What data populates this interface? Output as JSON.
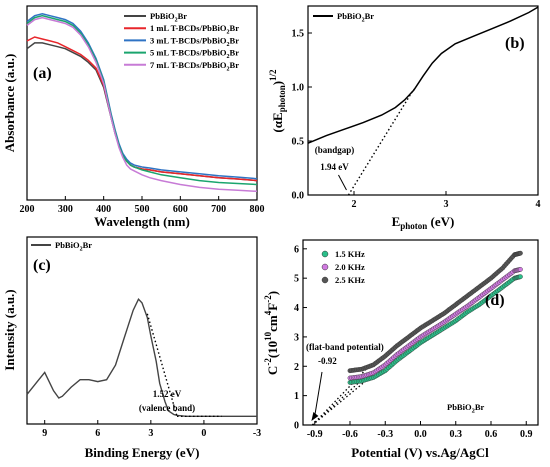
{
  "chart_data": [
    {
      "panel_label": "(a)",
      "type": "line",
      "xlabel": "Wavelength (nm)",
      "ylabel": "Absorbance (a.u.)",
      "xlim": [
        200,
        800
      ],
      "xticks": [
        200,
        300,
        400,
        500,
        600,
        700,
        800
      ],
      "legend_position": "top-right",
      "series": [
        {
          "name_parts": [
            "PbBiO",
            "2",
            "Br"
          ],
          "color": "#444444",
          "x": [
            200,
            220,
            240,
            260,
            280,
            300,
            320,
            340,
            360,
            380,
            400,
            410,
            420,
            430,
            440,
            450,
            460,
            470,
            480,
            500,
            520,
            550,
            600,
            650,
            700,
            750,
            800
          ],
          "y": [
            0.78,
            0.81,
            0.81,
            0.8,
            0.79,
            0.78,
            0.76,
            0.74,
            0.71,
            0.67,
            0.58,
            0.5,
            0.42,
            0.34,
            0.28,
            0.23,
            0.2,
            0.18,
            0.17,
            0.16,
            0.155,
            0.145,
            0.135,
            0.125,
            0.115,
            0.108,
            0.1
          ]
        },
        {
          "name_parts": [
            "1 mL T-BCDs/PbBiO",
            "2",
            "Br"
          ],
          "color": "#e8262b",
          "x": [
            200,
            220,
            240,
            260,
            280,
            300,
            320,
            340,
            360,
            380,
            400,
            410,
            420,
            430,
            440,
            450,
            460,
            470,
            480,
            500,
            520,
            550,
            600,
            650,
            700,
            750,
            800
          ],
          "y": [
            0.82,
            0.84,
            0.83,
            0.82,
            0.81,
            0.79,
            0.77,
            0.75,
            0.72,
            0.68,
            0.59,
            0.51,
            0.43,
            0.35,
            0.28,
            0.23,
            0.2,
            0.18,
            0.17,
            0.16,
            0.155,
            0.145,
            0.135,
            0.125,
            0.115,
            0.108,
            0.1
          ]
        },
        {
          "name_parts": [
            "3 mL T-BCDs/PbBiO",
            "2",
            "Br"
          ],
          "color": "#2f73c4",
          "x": [
            200,
            220,
            240,
            260,
            280,
            300,
            320,
            340,
            360,
            380,
            400,
            410,
            420,
            430,
            440,
            450,
            460,
            470,
            480,
            500,
            520,
            550,
            600,
            650,
            700,
            750,
            800
          ],
          "y": [
            0.92,
            0.95,
            0.96,
            0.95,
            0.94,
            0.93,
            0.91,
            0.87,
            0.81,
            0.73,
            0.62,
            0.53,
            0.44,
            0.36,
            0.29,
            0.24,
            0.21,
            0.19,
            0.18,
            0.17,
            0.165,
            0.155,
            0.145,
            0.135,
            0.125,
            0.118,
            0.11
          ]
        },
        {
          "name_parts": [
            "5 mL T-BCDs/PbBiO",
            "2",
            "Br"
          ],
          "color": "#1aa56e",
          "x": [
            200,
            220,
            240,
            260,
            280,
            300,
            320,
            340,
            360,
            380,
            400,
            410,
            420,
            430,
            440,
            450,
            460,
            470,
            480,
            500,
            520,
            550,
            600,
            650,
            700,
            750,
            800
          ],
          "y": [
            0.91,
            0.94,
            0.95,
            0.94,
            0.93,
            0.92,
            0.9,
            0.86,
            0.8,
            0.72,
            0.61,
            0.52,
            0.43,
            0.35,
            0.28,
            0.23,
            0.2,
            0.18,
            0.17,
            0.155,
            0.145,
            0.13,
            0.115,
            0.1,
            0.09,
            0.085,
            0.08
          ]
        },
        {
          "name_parts": [
            "7 mL T-BCDs/PbBiO",
            "2",
            "Br"
          ],
          "color": "#c77bd6",
          "x": [
            200,
            220,
            240,
            260,
            280,
            300,
            320,
            340,
            360,
            380,
            400,
            410,
            420,
            430,
            440,
            450,
            460,
            470,
            480,
            500,
            520,
            550,
            600,
            650,
            700,
            750,
            800
          ],
          "y": [
            0.9,
            0.93,
            0.94,
            0.93,
            0.92,
            0.91,
            0.89,
            0.85,
            0.79,
            0.71,
            0.6,
            0.51,
            0.42,
            0.34,
            0.27,
            0.22,
            0.18,
            0.16,
            0.15,
            0.13,
            0.115,
            0.1,
            0.08,
            0.065,
            0.055,
            0.05,
            0.045
          ]
        }
      ]
    },
    {
      "panel_label": "(b)",
      "type": "line",
      "xlabel_parts": [
        "E",
        "photon",
        " (eV)"
      ],
      "ylabel_parts": [
        "(αE",
        "photon",
        ")",
        "1/2"
      ],
      "xlim": [
        1.5,
        4
      ],
      "ylim": [
        0,
        1.75
      ],
      "xticks": [
        2,
        3,
        4
      ],
      "yticks": [
        0.0,
        0.5,
        1.0,
        1.5
      ],
      "ytick_labels": [
        "0.0",
        "0.5",
        "1.0",
        "1.5"
      ],
      "legend_position": "top-left",
      "series": [
        {
          "name_parts": [
            "PbBiO",
            "2",
            "Br"
          ],
          "color": "#000000",
          "x": [
            1.5,
            1.7,
            1.9,
            2.1,
            2.3,
            2.45,
            2.55,
            2.65,
            2.75,
            2.85,
            2.95,
            3.1,
            3.3,
            3.5,
            3.7,
            3.9,
            4.0
          ],
          "y": [
            0.48,
            0.55,
            0.61,
            0.67,
            0.74,
            0.81,
            0.88,
            0.97,
            1.1,
            1.22,
            1.31,
            1.4,
            1.47,
            1.54,
            1.61,
            1.69,
            1.74
          ]
        }
      ],
      "tangent": {
        "x": [
          1.94,
          2.65
        ],
        "y": [
          0.0,
          0.98
        ]
      },
      "annotation": {
        "lines": [
          "(bandgap)",
          "1.94 eV"
        ],
        "at_x": 1.94
      }
    },
    {
      "panel_label": "(c)",
      "type": "line",
      "xlabel": "Binding Energy (eV)",
      "ylabel": "Intensity (a.u.)",
      "xlim": [
        10,
        -3
      ],
      "xticks": [
        9,
        6,
        3,
        0,
        -3
      ],
      "legend_position": "top-left",
      "series": [
        {
          "name_parts": [
            "PbBiO",
            "2",
            "Br"
          ],
          "color": "#444444",
          "x": [
            10,
            9.5,
            9,
            8.5,
            8.2,
            8,
            7.5,
            7,
            6.5,
            6,
            5.5,
            5,
            4.5,
            4,
            3.7,
            3.5,
            3.2,
            3,
            2.7,
            2.5,
            2.2,
            2,
            1.7,
            1.5,
            1,
            0,
            -1,
            -2,
            -3
          ],
          "y": [
            0.14,
            0.2,
            0.26,
            0.16,
            0.12,
            0.13,
            0.18,
            0.22,
            0.22,
            0.21,
            0.22,
            0.3,
            0.45,
            0.6,
            0.66,
            0.64,
            0.56,
            0.46,
            0.32,
            0.2,
            0.1,
            0.05,
            0.03,
            0.025,
            0.02,
            0.02,
            0.02,
            0.02,
            0.02
          ]
        }
      ],
      "tangent": {
        "x": [
          3.2,
          1.52
        ],
        "y": [
          0.58,
          0.02
        ]
      },
      "baseline": {
        "x": [
          1.52,
          -1.0
        ],
        "y": [
          0.02,
          0.02
        ]
      },
      "annotation": {
        "lines": [
          "1.52 eV",
          "(valence band)"
        ],
        "at_x": 1.52
      }
    },
    {
      "panel_label": "(d)",
      "type": "scatter",
      "xlabel": "Potential (V) vs.Ag/AgCl",
      "ylabel_parts": [
        "C",
        "-2",
        "(10",
        "10",
        "cm",
        "4",
        "F",
        "-2",
        ")"
      ],
      "xlim": [
        -1.0,
        1.0
      ],
      "ylim": [
        0,
        6.3
      ],
      "xticks": [
        -0.9,
        -0.6,
        -0.3,
        0.0,
        0.3,
        0.6,
        0.9
      ],
      "xtick_labels": [
        "-0.9",
        "-0.6",
        "-0.3",
        "0.0",
        "0.3",
        "0.6",
        "0.9"
      ],
      "yticks": [
        0,
        1,
        2,
        3,
        4,
        5,
        6
      ],
      "legend_position": "top-left",
      "series_label_parts": [
        "PbBiO",
        "2",
        "Br"
      ],
      "series": [
        {
          "name": "1.5 KHz",
          "color": "#2bbf8a",
          "x": [
            -0.6,
            -0.5,
            -0.4,
            -0.3,
            -0.2,
            -0.1,
            0.0,
            0.1,
            0.2,
            0.3,
            0.4,
            0.5,
            0.6,
            0.7,
            0.8,
            0.85
          ],
          "y": [
            1.45,
            1.5,
            1.62,
            1.85,
            2.2,
            2.5,
            2.8,
            3.05,
            3.3,
            3.55,
            3.85,
            4.1,
            4.4,
            4.7,
            5.0,
            5.05
          ]
        },
        {
          "name": "2.0 KHz",
          "color": "#d07ae0",
          "x": [
            -0.6,
            -0.5,
            -0.4,
            -0.3,
            -0.2,
            -0.1,
            0.0,
            0.1,
            0.2,
            0.3,
            0.4,
            0.5,
            0.6,
            0.7,
            0.8,
            0.85
          ],
          "y": [
            1.6,
            1.65,
            1.78,
            2.05,
            2.4,
            2.7,
            3.0,
            3.25,
            3.5,
            3.78,
            4.05,
            4.35,
            4.65,
            4.95,
            5.25,
            5.3
          ]
        },
        {
          "name": "2.5 KHz",
          "color": "#555555",
          "x": [
            -0.6,
            -0.5,
            -0.4,
            -0.3,
            -0.2,
            -0.1,
            0.0,
            0.1,
            0.2,
            0.3,
            0.4,
            0.5,
            0.6,
            0.7,
            0.8,
            0.85
          ],
          "y": [
            1.85,
            1.9,
            2.05,
            2.35,
            2.7,
            3.0,
            3.3,
            3.55,
            3.8,
            4.1,
            4.4,
            4.7,
            5.0,
            5.35,
            5.8,
            5.85
          ]
        }
      ],
      "extrapolations": [
        {
          "x": [
            -0.92,
            -0.45
          ],
          "y": [
            0.0,
            1.55
          ]
        },
        {
          "x": [
            -0.92,
            -0.45
          ],
          "y": [
            0.0,
            1.72
          ]
        },
        {
          "x": [
            -0.92,
            -0.45
          ],
          "y": [
            0.0,
            1.95
          ]
        }
      ],
      "annotation": {
        "lines": [
          "(flat-band potential)",
          "-0.92"
        ],
        "at_x": -0.92
      }
    }
  ]
}
